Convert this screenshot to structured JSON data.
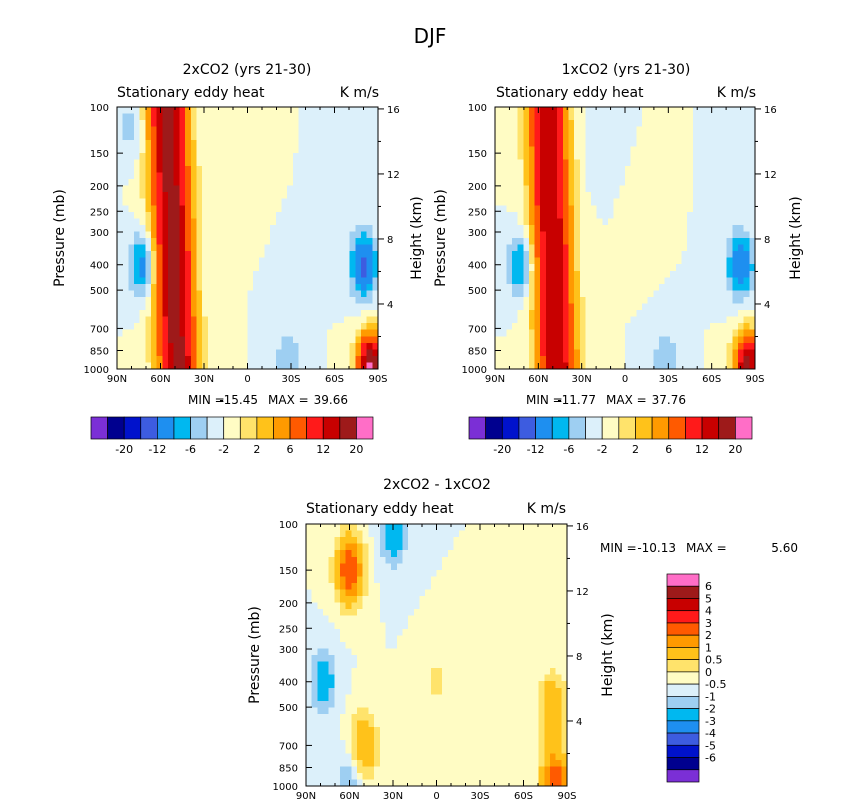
{
  "figure_title": "DJF",
  "chart_data": [
    {
      "type": "heatmap",
      "title": "2xCO2 (yrs 21-30)",
      "subtitle_left": "Stationary eddy heat",
      "subtitle_right": "K m/s",
      "ylabel": "Pressure (mb)",
      "y2label": "Height (km)",
      "xticks": [
        "90N",
        "60N",
        "30N",
        "0",
        "30S",
        "60S",
        "90S"
      ],
      "yticks": [
        "100",
        "150",
        "200",
        "250",
        "300",
        "400",
        "500",
        "700",
        "850",
        "1000"
      ],
      "y2ticks": [
        "16",
        "12",
        "8",
        "4"
      ],
      "minmax": {
        "min_label": "MIN =",
        "min": "-15.45",
        "max_label": "MAX =",
        "max": "39.66"
      },
      "colorbar": {
        "labels": [
          "-20",
          "-12",
          "-6",
          "-2",
          "2",
          "6",
          "12",
          "20"
        ]
      },
      "features": [
        {
          "type": "band",
          "lat": 55,
          "peak": 22
        },
        {
          "type": "vortex",
          "lat": 72,
          "pressure": 400,
          "value": -8
        },
        {
          "type": "vortex",
          "lat": -80,
          "pressure": 400,
          "value": -10
        },
        {
          "type": "vortex",
          "lat": 80,
          "pressure": 120,
          "value": -3
        },
        {
          "type": "vortex",
          "lat": -28,
          "pressure": 950,
          "value": -4
        },
        {
          "type": "vortex",
          "lat": -85,
          "pressure": 980,
          "value": 25
        },
        {
          "type": "vortex",
          "lat": 20,
          "pressure": 230,
          "value": 1
        }
      ]
    },
    {
      "type": "heatmap",
      "title": "1xCO2 (yrs 21-30)",
      "subtitle_left": "Stationary eddy heat",
      "subtitle_right": "K m/s",
      "ylabel": "Pressure (mb)",
      "y2label": "Height (km)",
      "xticks": [
        "90N",
        "60N",
        "30N",
        "0",
        "30S",
        "60S",
        "90S"
      ],
      "yticks": [
        "100",
        "150",
        "200",
        "250",
        "300",
        "400",
        "500",
        "700",
        "850",
        "1000"
      ],
      "y2ticks": [
        "16",
        "12",
        "8",
        "4"
      ],
      "minmax": {
        "min_label": "MIN =",
        "min": "-11.77",
        "max_label": "MAX =",
        "max": "37.76"
      },
      "colorbar": {
        "labels": [
          "-20",
          "-12",
          "-6",
          "-2",
          "2",
          "6",
          "12",
          "20"
        ]
      },
      "features": [
        {
          "type": "band",
          "lat": 54,
          "peak": 20
        },
        {
          "type": "vortex",
          "lat": 72,
          "pressure": 400,
          "value": -7
        },
        {
          "type": "vortex",
          "lat": -80,
          "pressure": 400,
          "value": -9
        },
        {
          "type": "vortex",
          "lat": 20,
          "pressure": 150,
          "value": -2
        },
        {
          "type": "vortex",
          "lat": -28,
          "pressure": 950,
          "value": -4
        },
        {
          "type": "vortex",
          "lat": -85,
          "pressure": 980,
          "value": 22
        },
        {
          "type": "vortex",
          "lat": -10,
          "pressure": 300,
          "value": 1
        }
      ]
    },
    {
      "type": "heatmap",
      "title": "2xCO2 - 1xCO2",
      "subtitle_left": "Stationary eddy heat",
      "subtitle_right": "K m/s",
      "ylabel": "Pressure (mb)",
      "y2label": "Height (km)",
      "xticks": [
        "90N",
        "60N",
        "30N",
        "0",
        "30S",
        "60S",
        "90S"
      ],
      "yticks": [
        "100",
        "150",
        "200",
        "250",
        "300",
        "400",
        "500",
        "700",
        "850",
        "1000"
      ],
      "y2ticks": [
        "16",
        "12",
        "8",
        "4"
      ],
      "minmax": {
        "min_label": "MIN =",
        "min": "-10.13",
        "max_label": "MAX =",
        "max": "5.60"
      },
      "colorbar": {
        "labels": [
          "6",
          "5",
          "4",
          "3",
          "2",
          "1",
          "0.5",
          "0",
          "-0.5",
          "-1",
          "-2",
          "-3",
          "-4",
          "-5",
          "-6"
        ]
      },
      "features": [
        {
          "type": "vortex",
          "lat": 60,
          "pressure": 150,
          "value": 4
        },
        {
          "type": "vortex",
          "lat": 30,
          "pressure": 110,
          "value": -1.5
        },
        {
          "type": "vortex",
          "lat": 78,
          "pressure": 400,
          "value": -1.5
        },
        {
          "type": "vortex",
          "lat": 50,
          "pressure": 700,
          "value": 2
        },
        {
          "type": "vortex",
          "lat": -80,
          "pressure": 500,
          "value": 2
        },
        {
          "type": "vortex",
          "lat": -82,
          "pressure": 980,
          "value": 4
        },
        {
          "type": "vortex",
          "lat": 60,
          "pressure": 980,
          "value": -1
        },
        {
          "type": "vortex",
          "lat": 0,
          "pressure": 400,
          "value": 0.6
        }
      ]
    }
  ],
  "palette": {
    "panel12": [
      "#7b2fd6",
      "#00008f",
      "#0012cc",
      "#3d5ce0",
      "#1e8ff0",
      "#00b8f0",
      "#9ecff2",
      "#dcf0fa",
      "#fffcc4",
      "#ffe36b",
      "#ffc21a",
      "#ff9a00",
      "#ff5a00",
      "#ff1a1a",
      "#c80000",
      "#9e1a1a",
      "#ff6ec7"
    ],
    "panel3": [
      "#7b2fd6",
      "#00008f",
      "#0012cc",
      "#3d5ce0",
      "#1e8ff0",
      "#00b8f0",
      "#9ecff2",
      "#dcf0fa",
      "#fffcc4",
      "#ffe36b",
      "#ffc21a",
      "#ff9a00",
      "#ff5a00",
      "#ff1a1a",
      "#c80000",
      "#9e1a1a",
      "#ff6ec7"
    ]
  }
}
